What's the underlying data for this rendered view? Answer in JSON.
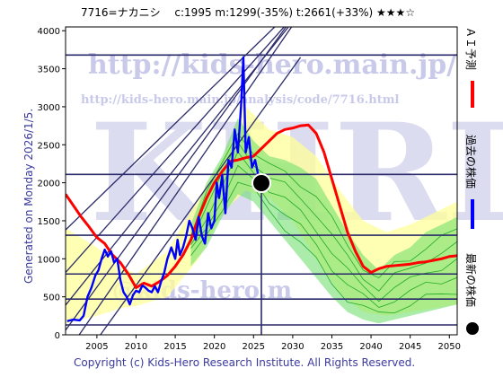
{
  "header": {
    "title": "7716=ナカニシ　 c:1995  m:1299(-35%)  t:2661(+33%)  ★★★☆"
  },
  "side_label": "Generated on Monday 2026/1/5.",
  "footer": "Copyright (c) Kids-Hero Research Institute. All Rights Reserved.",
  "watermarks": {
    "url1": "http://kids-hero.main.jp/",
    "url2": "http://kids-hero.main.jp/analysis/code/7716.html",
    "big": "KHRI",
    "lower": "@kids-hero.m"
  },
  "legend": [
    {
      "label": "ＡＩ予測",
      "color": "#ff0000"
    },
    {
      "label": "過去の株価",
      "color": "#0000ff"
    },
    {
      "label": "最新の株価",
      "color": "#000000"
    }
  ],
  "chart_data": {
    "type": "line",
    "title": "7716=ナカニシ　 c:1995  m:1299(-35%)  t:2661(+33%)  ★★★☆",
    "xlabel": "",
    "ylabel": "",
    "xlim": [
      2001,
      2051
    ],
    "ylim": [
      0,
      4050
    ],
    "x_ticks": [
      2005,
      2010,
      2015,
      2020,
      2025,
      2030,
      2035,
      2040,
      2045,
      2050
    ],
    "y_ticks": [
      0,
      500,
      1000,
      1500,
      2000,
      2500,
      3000,
      3500,
      4000
    ],
    "grid": false,
    "current_point": {
      "x": 2026.0,
      "y": 1995
    },
    "current_marker_line_x": 2026.0,
    "horizontal_levels": [
      130,
      470,
      800,
      1310,
      2110,
      3680
    ],
    "diagonal_lines": [
      {
        "x": [
          2001,
          2041
        ],
        "y": [
          1380,
          5380
        ]
      },
      {
        "x": [
          2001,
          2039
        ],
        "y": [
          820,
          5220
        ]
      },
      {
        "x": [
          2001,
          2037
        ],
        "y": [
          390,
          5020
        ]
      },
      {
        "x": [
          2001,
          2035
        ],
        "y": [
          60,
          4880
        ]
      },
      {
        "x": [
          2001,
          2033
        ],
        "y": [
          -260,
          4520
        ]
      },
      {
        "x": [
          2003,
          2031
        ],
        "y": [
          -350,
          3650
        ]
      }
    ],
    "series": [
      {
        "name": "ＡＩ予測",
        "color": "#ff0000",
        "x": [
          2001,
          2002,
          2003,
          2004,
          2005,
          2006,
          2007,
          2008,
          2009,
          2010,
          2011,
          2012,
          2013,
          2014,
          2015,
          2016,
          2017,
          2018,
          2019,
          2020,
          2021,
          2022,
          2023,
          2024,
          2025,
          2026,
          2027,
          2028,
          2029,
          2030,
          2031,
          2032,
          2033,
          2034,
          2035,
          2036,
          2037,
          2038,
          2039,
          2040,
          2041,
          2042,
          2043,
          2044,
          2045,
          2046,
          2047,
          2048,
          2049,
          2050,
          2051
        ],
        "y": [
          1850,
          1700,
          1550,
          1420,
          1280,
          1200,
          1050,
          950,
          800,
          620,
          680,
          640,
          700,
          780,
          900,
          1050,
          1250,
          1550,
          1800,
          2000,
          2150,
          2280,
          2300,
          2330,
          2350,
          2450,
          2550,
          2650,
          2700,
          2720,
          2750,
          2760,
          2650,
          2400,
          2050,
          1700,
          1350,
          1100,
          900,
          820,
          870,
          900,
          910,
          920,
          930,
          950,
          960,
          980,
          1000,
          1030,
          1040
        ]
      },
      {
        "name": "過去の株価",
        "color": "#0000ff",
        "x": [
          2001.2,
          2002,
          2002.8,
          2003.3,
          2003.8,
          2004.3,
          2004.8,
          2005.2,
          2005.6,
          2006,
          2006.4,
          2006.8,
          2007.2,
          2007.6,
          2008,
          2008.4,
          2008.8,
          2009.2,
          2009.6,
          2010,
          2010.4,
          2010.8,
          2011.2,
          2011.6,
          2012,
          2012.4,
          2012.8,
          2013.2,
          2013.6,
          2014,
          2014.5,
          2015,
          2015.3,
          2015.6,
          2016,
          2016.4,
          2016.8,
          2017.2,
          2017.6,
          2018,
          2018.4,
          2018.8,
          2019.2,
          2019.6,
          2020,
          2020.3,
          2020.6,
          2021,
          2021.4,
          2021.8,
          2022.2,
          2022.6,
          2023,
          2023.4,
          2023.7,
          2024,
          2024.4,
          2024.8,
          2025.2,
          2025.6,
          2026
        ],
        "y": [
          180,
          200,
          190,
          250,
          500,
          620,
          780,
          850,
          1000,
          1120,
          1030,
          1100,
          950,
          1000,
          720,
          560,
          500,
          400,
          520,
          580,
          560,
          650,
          620,
          580,
          560,
          640,
          560,
          700,
          820,
          1000,
          1150,
          1000,
          1250,
          1050,
          1150,
          1300,
          1500,
          1400,
          1250,
          1550,
          1300,
          1200,
          1600,
          1400,
          1500,
          2000,
          1800,
          2100,
          1600,
          2300,
          2200,
          2700,
          2400,
          3000,
          3650,
          2400,
          2600,
          2200,
          2300,
          2100,
          1995
        ]
      }
    ],
    "band": {
      "color": "#ffff99",
      "x": [
        2001,
        2005,
        2008,
        2010,
        2014,
        2018,
        2021,
        2024,
        2027,
        2030,
        2033,
        2036,
        2039,
        2042,
        2045,
        2048,
        2051
      ],
      "upper": [
        1400,
        1150,
        900,
        800,
        1100,
        1800,
        2300,
        3000,
        2700,
        2600,
        2350,
        1900,
        1500,
        1350,
        1450,
        1600,
        1750
      ],
      "lower": [
        150,
        250,
        350,
        380,
        500,
        1000,
        1600,
        1900,
        1800,
        1500,
        1000,
        550,
        300,
        250,
        300,
        350,
        400
      ]
    },
    "green_band": {
      "color": "#66dd66",
      "x": [
        2017,
        2019,
        2021,
        2023,
        2025,
        2027,
        2029,
        2031,
        2033,
        2035,
        2037,
        2039,
        2041,
        2043,
        2045,
        2047,
        2049,
        2051
      ],
      "upper": [
        1450,
        2000,
        2350,
        2850,
        2550,
        2350,
        2300,
        2200,
        2050,
        1700,
        1350,
        1050,
        850,
        1050,
        1150,
        1350,
        1450,
        1550
      ],
      "lower": [
        900,
        1150,
        1550,
        1850,
        1750,
        1500,
        1250,
        1000,
        750,
        500,
        300,
        200,
        150,
        200,
        250,
        300,
        350,
        400
      ]
    }
  }
}
